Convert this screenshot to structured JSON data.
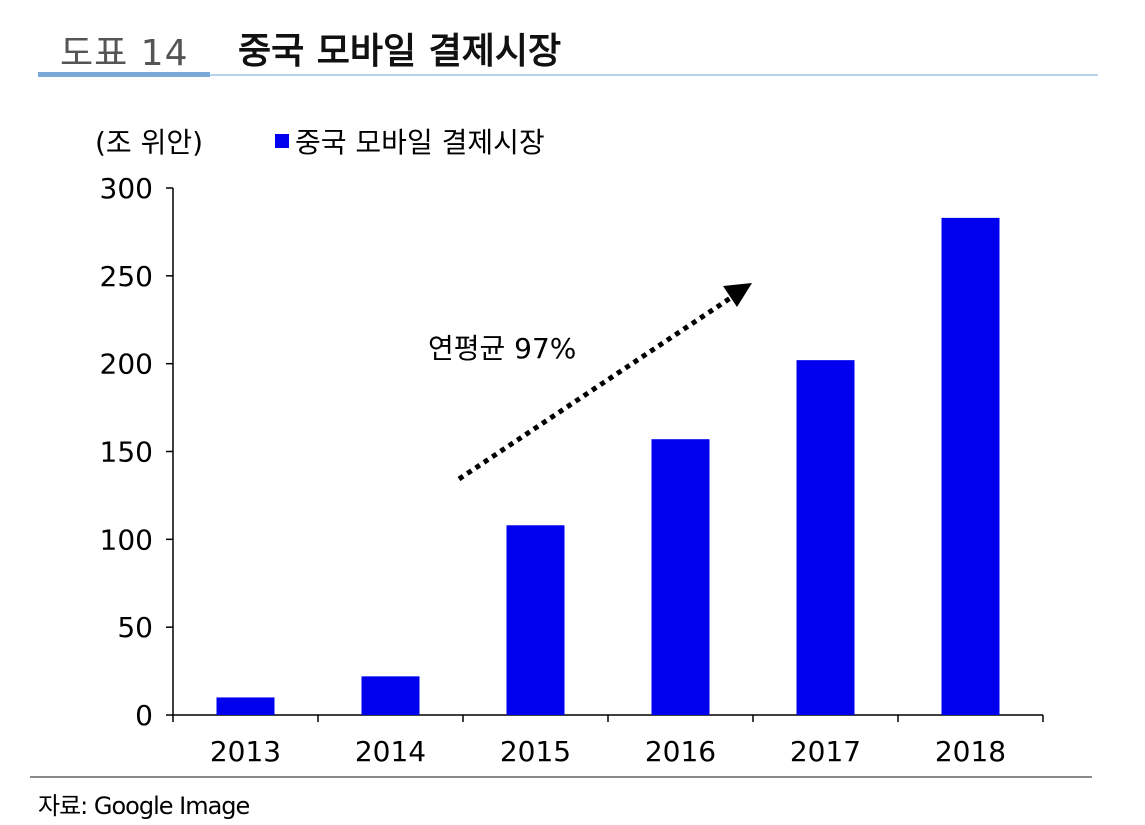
{
  "figure": {
    "label": "도표 14",
    "title": "중국 모바일 결제시장"
  },
  "unit_label": "(조 위안)",
  "legend_label": "중국 모바일 결제시장",
  "annotation": "연평균 97%",
  "source": "자료: Google Image",
  "colors": {
    "bar": "#0000ee",
    "accent_line": "#7aa8d8"
  },
  "chart_data": {
    "type": "bar",
    "categories": [
      "2013",
      "2014",
      "2015",
      "2016",
      "2017",
      "2018"
    ],
    "series": [
      {
        "name": "중국 모바일 결제시장",
        "values": [
          10,
          22,
          108,
          157,
          202,
          283
        ]
      }
    ],
    "ylim": [
      0,
      300
    ],
    "yticks": [
      0,
      50,
      100,
      150,
      200,
      250,
      300
    ],
    "ylabel": "(조 위안)",
    "xlabel": "",
    "grid": false,
    "legend_position": "top-left"
  }
}
